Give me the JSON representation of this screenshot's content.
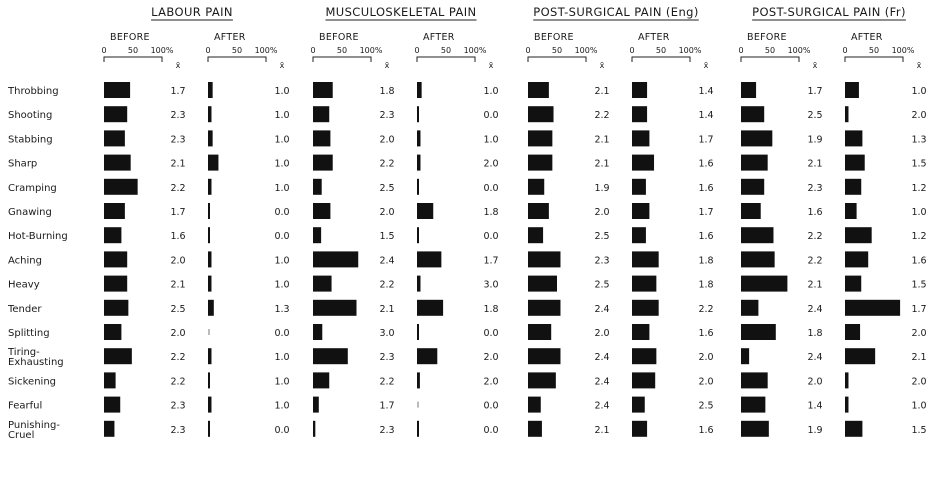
{
  "chart_data": {
    "type": "bar",
    "scale_ticks": [
      "0",
      "50",
      "100%"
    ],
    "mean_symbol": "x̄",
    "groups": [
      {
        "title": "LABOUR PAIN"
      },
      {
        "title": "MUSCULOSKELETAL PAIN"
      },
      {
        "title": "POST-SURGICAL PAIN (Eng)"
      },
      {
        "title": "POST-SURGICAL PAIN (Fr)"
      }
    ],
    "phases": [
      "BEFORE",
      "AFTER"
    ],
    "rows": [
      "Throbbing",
      "Shooting",
      "Stabbing",
      "Sharp",
      "Cramping",
      "Gnawing",
      "Hot-Burning",
      "Aching",
      "Heavy",
      "Tender",
      "Splitting",
      "Tiring-\nExhausting",
      "Sickening",
      "Fearful",
      "Punishing-\nCruel"
    ],
    "series": [
      {
        "group": 0,
        "phase": "BEFORE",
        "percent": [
          45,
          40,
          36,
          46,
          58,
          36,
          30,
          40,
          40,
          42,
          30,
          48,
          20,
          28,
          18
        ],
        "mean": [
          "1.7",
          "2.3",
          "2.3",
          "2.1",
          "2.2",
          "1.7",
          "1.6",
          "2.0",
          "2.1",
          "2.5",
          "2.0",
          "2.2",
          "2.2",
          "2.3",
          "2.3"
        ]
      },
      {
        "group": 0,
        "phase": "AFTER",
        "percent": [
          8,
          6,
          8,
          18,
          6,
          2,
          2,
          6,
          6,
          10,
          0,
          6,
          2,
          6,
          2
        ],
        "mean": [
          "1.0",
          "1.0",
          "1.0",
          "1.0",
          "1.0",
          "0.0",
          "0.0",
          "1.0",
          "1.0",
          "1.3",
          "0.0",
          "1.0",
          "1.0",
          "1.0",
          "0.0"
        ]
      },
      {
        "group": 1,
        "phase": "BEFORE",
        "percent": [
          34,
          28,
          30,
          34,
          15,
          30,
          14,
          78,
          32,
          75,
          16,
          60,
          28,
          10,
          4
        ],
        "mean": [
          "1.8",
          "2.3",
          "2.0",
          "2.2",
          "2.5",
          "2.0",
          "1.5",
          "2.4",
          "2.2",
          "2.1",
          "3.0",
          "2.3",
          "2.2",
          "1.7",
          "2.3"
        ]
      },
      {
        "group": 1,
        "phase": "AFTER",
        "percent": [
          8,
          2,
          6,
          6,
          2,
          28,
          2,
          42,
          6,
          45,
          2,
          35,
          5,
          0,
          2
        ],
        "mean": [
          "1.0",
          "0.0",
          "1.0",
          "2.0",
          "0.0",
          "1.8",
          "0.0",
          "1.7",
          "3.0",
          "1.8",
          "0.0",
          "2.0",
          "2.0",
          "0.0",
          "0.0"
        ]
      },
      {
        "group": 2,
        "phase": "BEFORE",
        "percent": [
          36,
          44,
          42,
          42,
          28,
          36,
          26,
          56,
          50,
          56,
          40,
          56,
          48,
          22,
          24
        ],
        "mean": [
          "2.1",
          "2.2",
          "2.1",
          "2.1",
          "1.9",
          "2.0",
          "2.5",
          "2.3",
          "2.5",
          "2.4",
          "2.0",
          "2.4",
          "2.4",
          "2.4",
          "2.1"
        ]
      },
      {
        "group": 2,
        "phase": "AFTER",
        "percent": [
          26,
          26,
          30,
          38,
          24,
          30,
          24,
          46,
          42,
          46,
          30,
          42,
          40,
          22,
          26
        ],
        "mean": [
          "1.4",
          "1.4",
          "1.7",
          "1.6",
          "1.6",
          "1.7",
          "1.6",
          "1.8",
          "1.8",
          "2.2",
          "1.6",
          "2.0",
          "2.0",
          "2.5",
          "1.6"
        ]
      },
      {
        "group": 3,
        "phase": "BEFORE",
        "percent": [
          26,
          40,
          54,
          46,
          40,
          34,
          56,
          58,
          80,
          30,
          60,
          14,
          46,
          42,
          48
        ],
        "mean": [
          "1.7",
          "2.5",
          "1.9",
          "2.1",
          "2.3",
          "1.6",
          "2.2",
          "2.2",
          "2.1",
          "2.4",
          "1.8",
          "2.4",
          "2.0",
          "1.4",
          "1.9"
        ]
      },
      {
        "group": 3,
        "phase": "AFTER",
        "percent": [
          24,
          6,
          30,
          34,
          28,
          20,
          46,
          40,
          28,
          95,
          26,
          52,
          6,
          6,
          30
        ],
        "mean": [
          "1.0",
          "2.0",
          "1.3",
          "1.5",
          "1.2",
          "1.0",
          "1.2",
          "1.6",
          "1.5",
          "1.7",
          "2.0",
          "2.1",
          "2.0",
          "1.0",
          "1.5"
        ]
      }
    ]
  }
}
